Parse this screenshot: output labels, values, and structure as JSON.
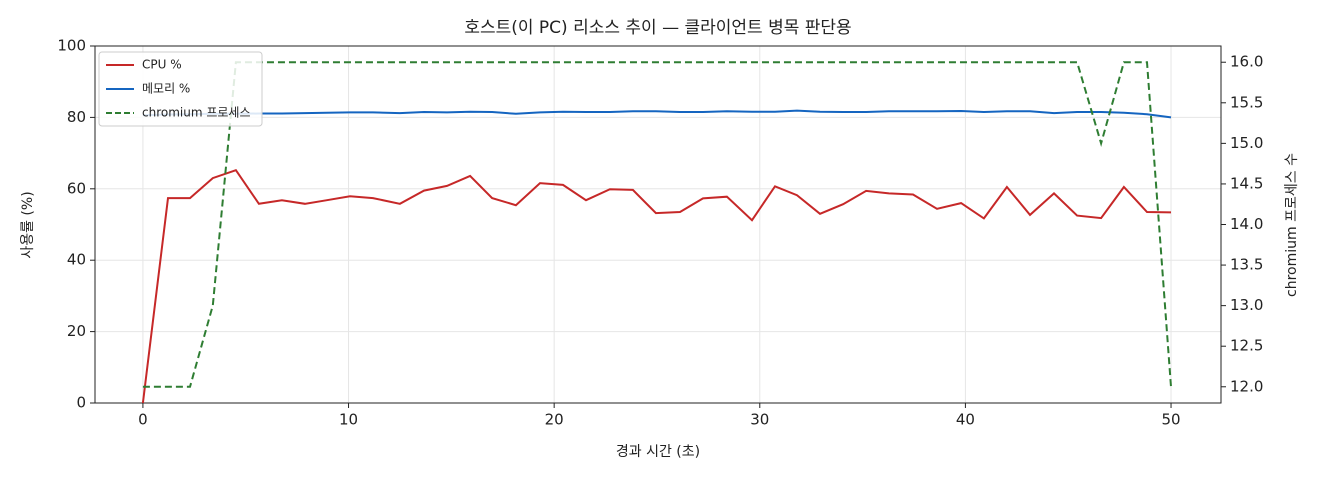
{
  "chart_data": {
    "type": "line",
    "title": "호스트(이 PC) 리소스 추이 — 클라이언트 병목 판단용",
    "x_label": "경과 시간 (초)",
    "y_label": "사용률 (%)",
    "y2_label": "chromium 프로세스 수",
    "x": [
      0,
      1.22,
      2.29,
      3.4,
      4.52,
      5.64,
      6.76,
      7.88,
      8.95,
      10.07,
      11.19,
      12.5,
      13.67,
      14.79,
      15.91,
      16.98,
      18.14,
      19.31,
      20.43,
      21.55,
      22.71,
      23.83,
      24.95,
      26.12,
      27.24,
      28.4,
      29.62,
      30.74,
      31.81,
      32.93,
      34.05,
      35.17,
      36.28,
      37.45,
      38.62,
      39.79,
      40.9,
      42.02,
      43.14,
      44.31,
      45.43,
      46.6,
      47.71,
      48.83,
      50.0
    ],
    "series": [
      {
        "name": "CPU %",
        "color": "#c62828",
        "linestyle": "solid",
        "values": [
          0,
          57.4,
          57.4,
          63,
          65.2,
          55.8,
          56.8,
          55.8,
          56.8,
          57.9,
          57.4,
          55.8,
          59.5,
          60.8,
          63.6,
          57.4,
          55.4,
          61.6,
          61.1,
          56.8,
          59.9,
          59.7,
          53.2,
          53.5,
          57.3,
          57.8,
          51.2,
          60.7,
          58.2,
          53.0,
          55.7,
          59.4,
          58.7,
          58.4,
          54.4,
          56.0,
          51.7,
          60.5,
          52.7,
          58.7,
          52.5,
          51.8,
          60.5,
          53.5,
          53.4
        ]
      },
      {
        "name": "메모리 %",
        "color": "#1565c0",
        "linestyle": "solid",
        "values": [
          80.6,
          80.8,
          80.9,
          81.0,
          81.0,
          81.1,
          81.1,
          81.2,
          81.3,
          81.4,
          81.4,
          81.2,
          81.5,
          81.4,
          81.6,
          81.5,
          81.0,
          81.4,
          81.6,
          81.5,
          81.5,
          81.7,
          81.7,
          81.5,
          81.5,
          81.7,
          81.6,
          81.6,
          81.9,
          81.6,
          81.5,
          81.5,
          81.7,
          81.7,
          81.7,
          81.8,
          81.5,
          81.7,
          81.7,
          81.2,
          81.5,
          81.5,
          81.3,
          80.9,
          80.0
        ]
      },
      {
        "name": "chromium 프로세스",
        "color": "#2e7d32",
        "linestyle": "dashed",
        "axis": "y2",
        "values": [
          12,
          12,
          12,
          13,
          16,
          16,
          16,
          16,
          16,
          16,
          16,
          16,
          16,
          16,
          16,
          16,
          16,
          16,
          16,
          16,
          16,
          16,
          16,
          16,
          16,
          16,
          16,
          16,
          16,
          16,
          16,
          16,
          16,
          16,
          16,
          16,
          16,
          16,
          16,
          16,
          16,
          15,
          16,
          16,
          12
        ]
      }
    ],
    "xlim": [
      -2.33,
      52.43
    ],
    "xticks": [
      0,
      10,
      20,
      30,
      40,
      50
    ],
    "ylim": [
      0,
      100
    ],
    "yticks": [
      0,
      20,
      40,
      60,
      80,
      100
    ],
    "y2lim": [
      11.8,
      16.2
    ],
    "y2ticks": [
      {
        "value": 12,
        "label": "12.0"
      },
      {
        "value": 12.5,
        "label": "12.5"
      },
      {
        "value": 13,
        "label": "13.0"
      },
      {
        "value": 13.5,
        "label": "13.5"
      },
      {
        "value": 14,
        "label": "14.0"
      },
      {
        "value": 14.5,
        "label": "14.5"
      },
      {
        "value": 15,
        "label": "15.0"
      },
      {
        "value": 15.5,
        "label": "15.5"
      },
      {
        "value": 16,
        "label": "16.0"
      }
    ],
    "grid": true,
    "legend": "upper left"
  }
}
